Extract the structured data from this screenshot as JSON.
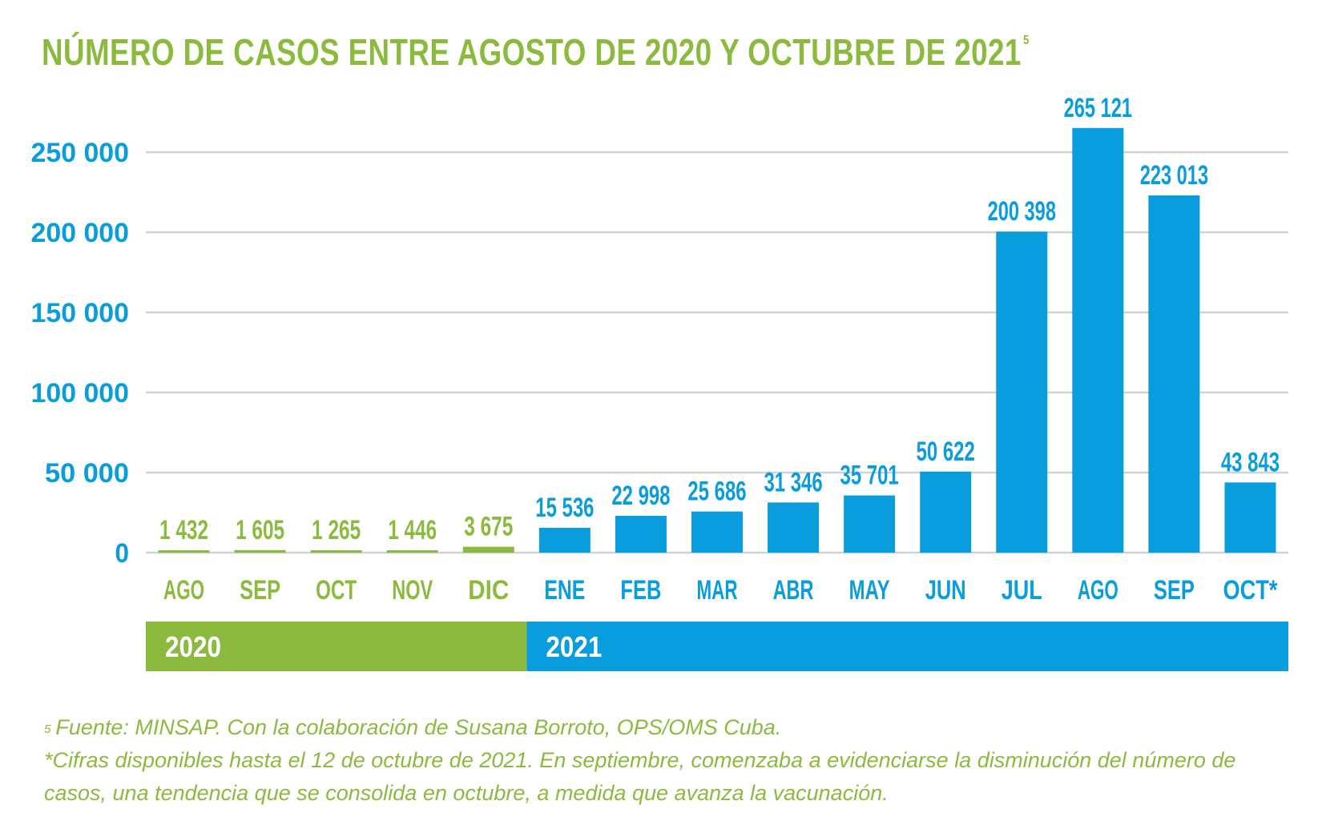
{
  "title": {
    "text": "NÚMERO DE CASOS ENTRE AGOSTO DE 2020 Y OCTUBRE DE 2021",
    "footnote_ref": "5"
  },
  "colors": {
    "green": "#8cba3f",
    "blue": "#0a9ddd",
    "grid": "#cfd3d6"
  },
  "chart_data": {
    "type": "bar",
    "title": "NÚMERO DE CASOS ENTRE AGOSTO DE 2020 Y OCTUBRE DE 2021",
    "categories": [
      "AGO",
      "SEP",
      "OCT",
      "NOV",
      "DIC",
      "ENE",
      "FEB",
      "MAR",
      "ABR",
      "MAY",
      "JUN",
      "JUL",
      "AGO",
      "SEP",
      "OCT*"
    ],
    "values": [
      1432,
      1605,
      1265,
      1446,
      3675,
      15536,
      22998,
      25686,
      31346,
      35701,
      50622,
      200398,
      265121,
      223013,
      43843
    ],
    "value_labels": [
      "1 432",
      "1 605",
      "1 265",
      "1 446",
      "3 675",
      "15 536",
      "22 998",
      "25 686",
      "31 346",
      "35 701",
      "50 622",
      "200 398",
      "265 121",
      "223 013",
      "43 843"
    ],
    "year_of_bar": [
      "2020",
      "2020",
      "2020",
      "2020",
      "2020",
      "2021",
      "2021",
      "2021",
      "2021",
      "2021",
      "2021",
      "2021",
      "2021",
      "2021",
      "2021"
    ],
    "years": [
      {
        "label": "2020",
        "color": "#8cba3f",
        "count": 5
      },
      {
        "label": "2021",
        "color": "#0a9ddd",
        "count": 10
      }
    ],
    "yticks": [
      0,
      50000,
      100000,
      150000,
      200000,
      250000
    ],
    "ytick_labels": [
      "0",
      "50 000",
      "100 000",
      "150 000",
      "200 000",
      "250 000"
    ],
    "ylim": [
      0,
      275000
    ],
    "grid": true,
    "xlabel": "",
    "ylabel": ""
  },
  "notes": {
    "source_ref": "5",
    "source": "Fuente: MINSAP. Con la colaboración de Susana Borroto, OPS/OMS Cuba.",
    "asterisk": "*Cifras disponibles hasta el 12 de octubre de 2021. En septiembre, comenzaba a evidenciarse la disminución del número de casos, una tendencia que se consolida en octubre, a medida que avanza la vacunación."
  }
}
